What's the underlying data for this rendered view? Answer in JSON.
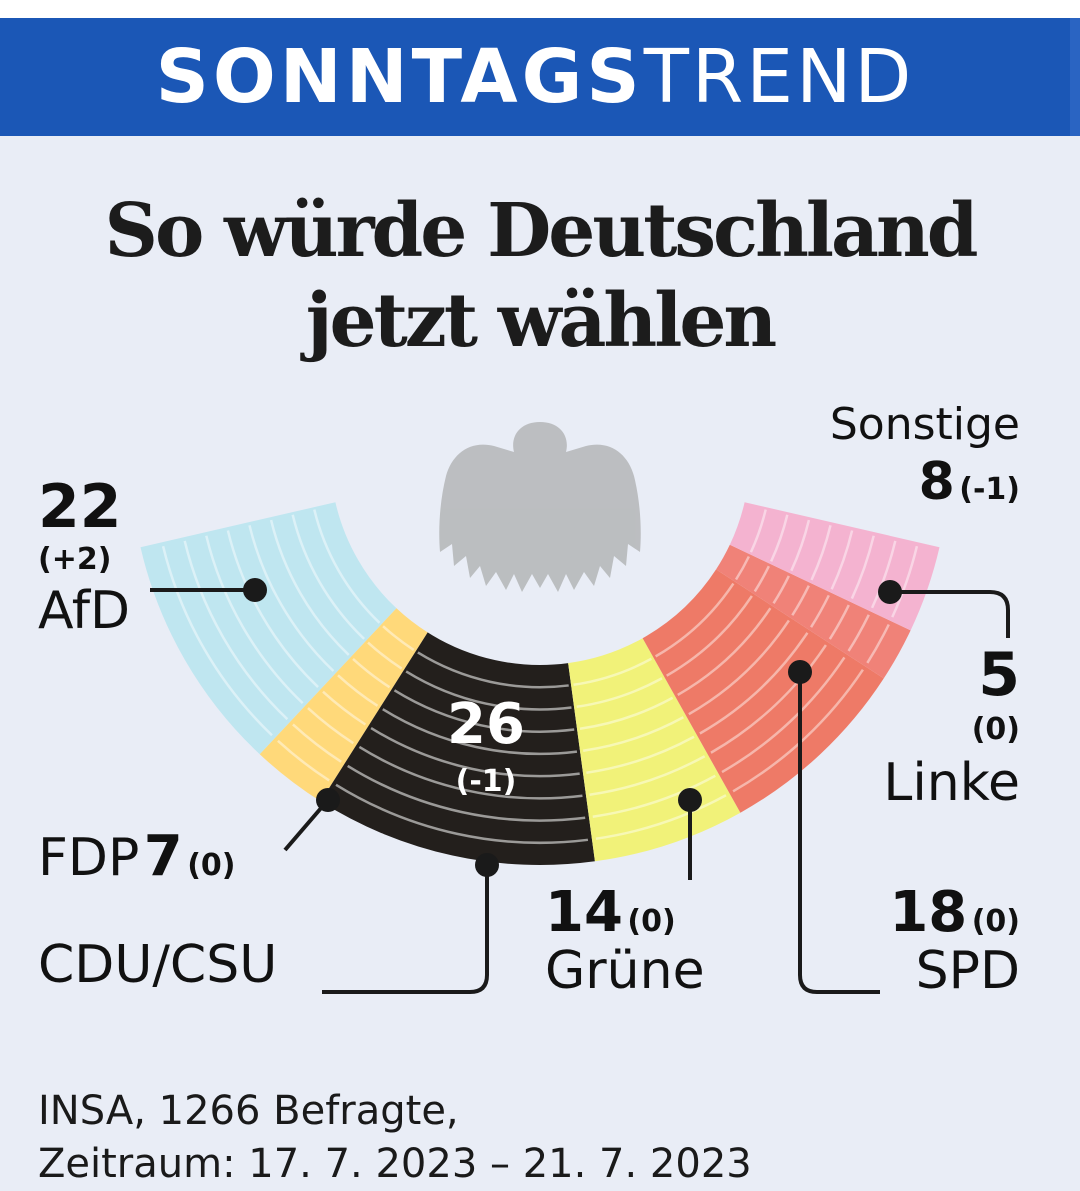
{
  "banner": {
    "bold": "SONNTAGS",
    "light": "TREND"
  },
  "headline": {
    "line1": "So würde Deutschland",
    "line2": "jetzt wählen"
  },
  "chart_data": {
    "type": "pie",
    "subtype": "semicircle (parliament)",
    "unit": "%",
    "slices": [
      {
        "name": "AfD",
        "value": 22,
        "change": "(+2)",
        "color": "#bfe6f0"
      },
      {
        "name": "FDP",
        "value": 7,
        "change": "(0)",
        "color": "#ffd97a"
      },
      {
        "name": "CDU/CSU",
        "value": 26,
        "change": "(-1)",
        "color": "#231f1c"
      },
      {
        "name": "Grüne",
        "value": 14,
        "change": "(0)",
        "color": "#f1f279"
      },
      {
        "name": "SPD",
        "value": 18,
        "change": "(0)",
        "color": "#ee7a67"
      },
      {
        "name": "Linke",
        "value": 5,
        "change": "(0)",
        "color": "#f08278"
      },
      {
        "name": "Sonstige",
        "value": 8,
        "change": "(-1)",
        "color": "#f4b3d0"
      }
    ]
  },
  "labels": {
    "afd": {
      "value": "22",
      "change": "(+2)",
      "name": "AfD"
    },
    "fdp": {
      "name": "FDP",
      "value": "7",
      "change": "(0)"
    },
    "cdu": {
      "value": "26",
      "change": "(-1)",
      "name": "CDU/CSU"
    },
    "gruene": {
      "value": "14",
      "change": "(0)",
      "name": "Grüne"
    },
    "spd": {
      "value": "18",
      "change": "(0)",
      "name": "SPD"
    },
    "linke": {
      "value": "5",
      "change": "(0)",
      "name": "Linke"
    },
    "sonstige": {
      "name": "Sonstige",
      "value": "8",
      "change": "(-1)"
    }
  },
  "source": {
    "line1": "INSA, 1266 Befragte,",
    "line2": "Zeitraum:  17. 7. 2023 – 21. 7. 2023"
  },
  "icons": {
    "emblem": "federal-eagle-icon"
  }
}
